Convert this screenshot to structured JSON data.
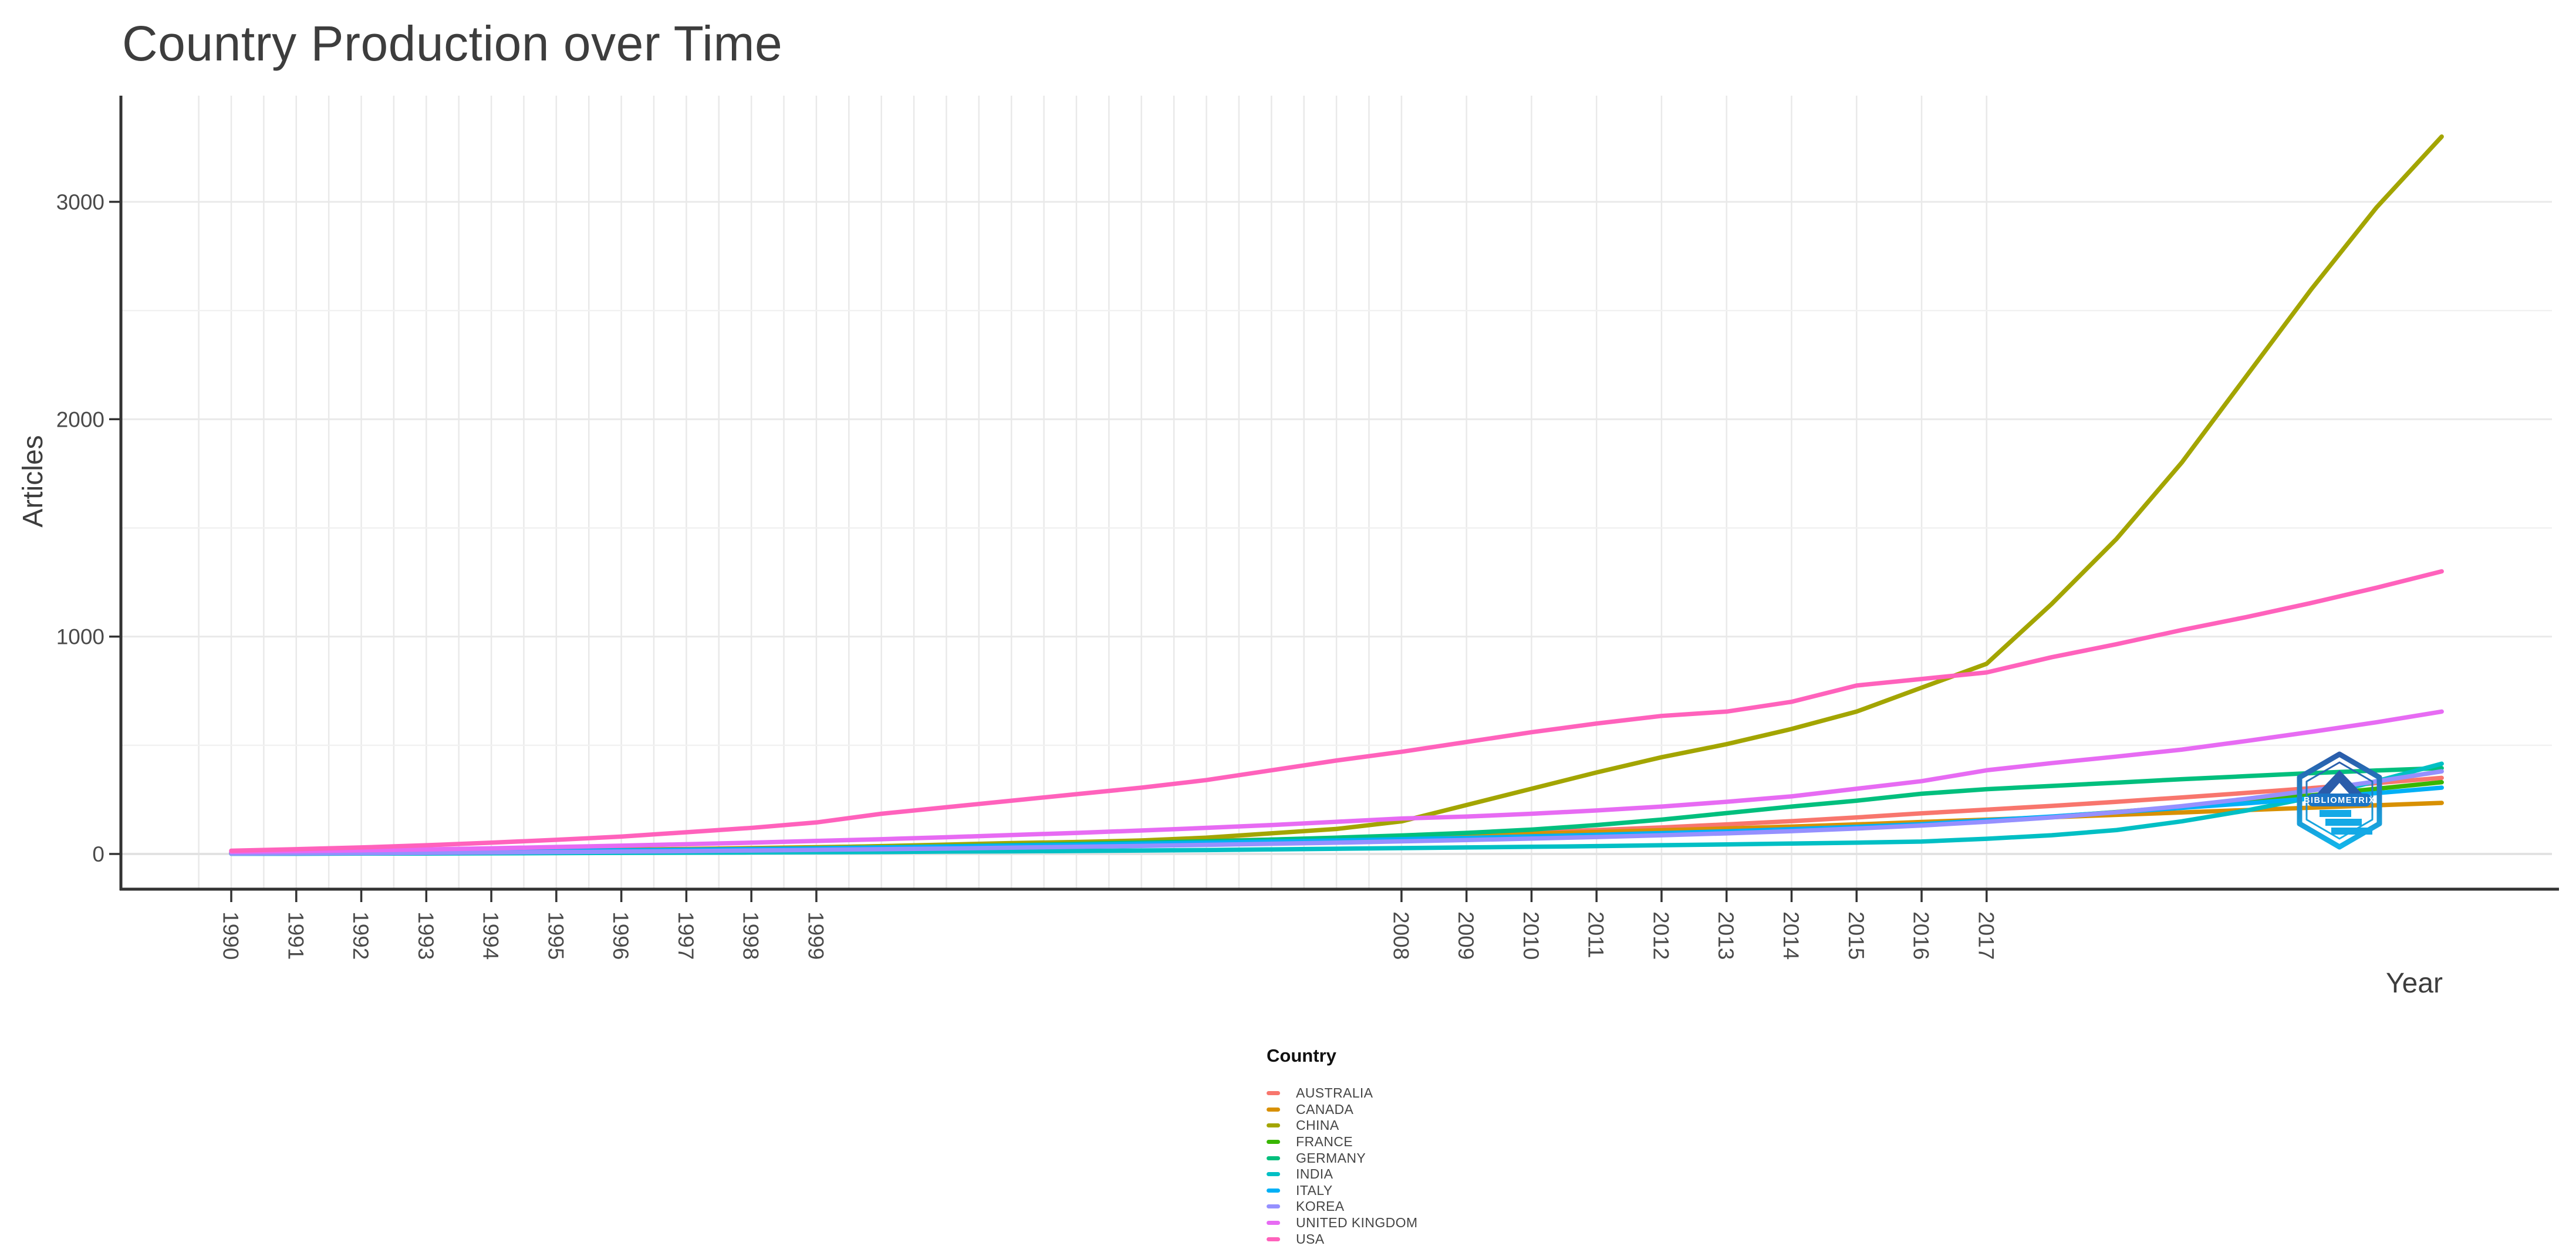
{
  "chart": {
    "title": "Country Production over Time",
    "legend_title": "Country",
    "watermark_text": "BIBLIOMETRIX"
  },
  "chart_data": {
    "type": "line",
    "title": "Country Production over Time",
    "xlabel": "Year",
    "ylabel": "Articles",
    "x": [
      1990,
      1991,
      1992,
      1993,
      1994,
      1995,
      1996,
      1997,
      1998,
      1999,
      2000,
      2001,
      2002,
      2003,
      2004,
      2005,
      2006,
      2007,
      2008,
      2009,
      2010,
      2011,
      2012,
      2013,
      2014,
      2015,
      2016,
      2017,
      2018,
      2019,
      2020,
      2021,
      2022,
      2023,
      2024
    ],
    "x_breaks_labeled": [
      1990,
      1991,
      1992,
      1993,
      1994,
      1995,
      1996,
      1997,
      1998,
      1999,
      2008,
      2009,
      2010,
      2011,
      2012,
      2013,
      2014,
      2015,
      2016,
      2017
    ],
    "y_breaks": [
      0,
      1000,
      2000,
      3000
    ],
    "y_minor_breaks": [
      500,
      1500,
      2500
    ],
    "xlim": [
      1989.5,
      2024
    ],
    "ylim": [
      0,
      3490
    ],
    "grid": true,
    "legend_position": "bottom-center",
    "series": [
      {
        "name": "AUSTRALIA",
        "color": "#F8766D",
        "values": [
          4,
          5,
          7,
          9,
          11,
          14,
          17,
          20,
          24,
          28,
          32,
          36,
          41,
          46,
          52,
          58,
          65,
          72,
          80,
          89,
          99,
          110,
          122,
          136,
          151,
          168,
          187,
          204,
          221,
          240,
          260,
          281,
          303,
          326,
          350
        ]
      },
      {
        "name": "CANADA",
        "color": "#D89000",
        "values": [
          6,
          8,
          10,
          12,
          14,
          17,
          20,
          23,
          27,
          31,
          35,
          39,
          44,
          49,
          54,
          60,
          66,
          72,
          78,
          85,
          93,
          101,
          109,
          117,
          126,
          136,
          147,
          158,
          169,
          180,
          191,
          202,
          213,
          224,
          235
        ]
      },
      {
        "name": "CHINA",
        "color": "#A3A500",
        "values": [
          2,
          3,
          5,
          7,
          9,
          12,
          16,
          20,
          25,
          30,
          36,
          43,
          50,
          55,
          62,
          75,
          95,
          115,
          150,
          225,
          300,
          375,
          445,
          505,
          575,
          655,
          765,
          875,
          1150,
          1450,
          1800,
          2200,
          2600,
          2975,
          3300
        ]
      },
      {
        "name": "FRANCE",
        "color": "#39B600",
        "values": [
          4,
          5,
          6,
          8,
          10,
          12,
          14,
          17,
          20,
          23,
          26,
          29,
          33,
          37,
          41,
          46,
          51,
          56,
          62,
          68,
          75,
          82,
          90,
          99,
          109,
          121,
          135,
          152,
          171,
          193,
          217,
          243,
          270,
          300,
          330
        ]
      },
      {
        "name": "GERMANY",
        "color": "#00BF7D",
        "values": [
          3,
          4,
          6,
          8,
          10,
          13,
          16,
          19,
          22,
          26,
          30,
          35,
          40,
          46,
          52,
          58,
          66,
          75,
          85,
          97,
          112,
          133,
          158,
          188,
          218,
          245,
          277,
          298,
          313,
          328,
          344,
          358,
          372,
          384,
          395
        ]
      },
      {
        "name": "INDIA",
        "color": "#00BFC4",
        "values": [
          1,
          1,
          2,
          2,
          3,
          4,
          5,
          6,
          7,
          8,
          9,
          11,
          12,
          14,
          16,
          18,
          21,
          24,
          27,
          30,
          33,
          36,
          40,
          44,
          48,
          52,
          57,
          70,
          86,
          110,
          150,
          200,
          260,
          335,
          415
        ]
      },
      {
        "name": "ITALY",
        "color": "#00B0F6",
        "values": [
          5,
          6,
          8,
          10,
          12,
          14,
          17,
          20,
          23,
          26,
          30,
          34,
          38,
          42,
          47,
          52,
          57,
          62,
          68,
          74,
          81,
          88,
          96,
          104,
          114,
          125,
          137,
          155,
          172,
          192,
          212,
          233,
          256,
          280,
          305
        ]
      },
      {
        "name": "KOREA",
        "color": "#9590FF",
        "values": [
          2,
          3,
          4,
          5,
          7,
          9,
          11,
          13,
          16,
          19,
          22,
          25,
          29,
          33,
          37,
          42,
          47,
          52,
          58,
          64,
          71,
          78,
          86,
          95,
          105,
          117,
          131,
          148,
          168,
          192,
          220,
          254,
          292,
          334,
          380
        ]
      },
      {
        "name": "UNITED KINGDOM",
        "color": "#E76BF3",
        "values": [
          10,
          13,
          17,
          21,
          26,
          32,
          38,
          45,
          52,
          60,
          68,
          77,
          87,
          97,
          108,
          120,
          133,
          148,
          163,
          172,
          185,
          200,
          218,
          240,
          265,
          300,
          335,
          385,
          418,
          448,
          480,
          520,
          562,
          606,
          655
        ]
      },
      {
        "name": "USA",
        "color": "#FF62BC",
        "values": [
          15,
          22,
          30,
          40,
          52,
          65,
          80,
          100,
          120,
          145,
          185,
          215,
          245,
          275,
          305,
          340,
          385,
          430,
          470,
          515,
          560,
          600,
          635,
          655,
          700,
          775,
          805,
          835,
          905,
          965,
          1030,
          1090,
          1155,
          1225,
          1300
        ]
      }
    ]
  },
  "colors": {
    "axis_line": "#333333",
    "tick_text": "#4a4a4a",
    "grid_major": "#e9e9e9",
    "grid_minor": "#f1f1f1",
    "grid_zero": "#e2e2e2",
    "watermark_dark_blue": "#2a5caa",
    "watermark_cyan": "#13b5ea"
  }
}
